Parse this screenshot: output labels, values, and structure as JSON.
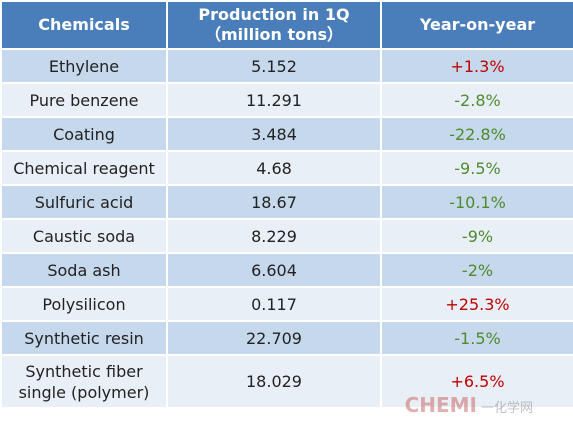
{
  "table": {
    "header": [
      "Chemicals",
      [
        "Production in 1Q",
        "（million tons）"
      ],
      "Year-on-year"
    ],
    "rows": [
      [
        "Ethylene",
        "5.152",
        "+1.3%"
      ],
      [
        "Pure benzene",
        "11.291",
        "-2.8%"
      ],
      [
        "Coating",
        "3.484",
        "-22.8%"
      ],
      [
        "Chemical reagent",
        "4.68",
        "-9.5%"
      ],
      [
        "Sulfuric acid",
        "18.67",
        "-10.1%"
      ],
      [
        "Caustic soda",
        "8.229",
        "-9%"
      ],
      [
        "Soda ash",
        "6.604",
        "-2%"
      ],
      [
        "Polysilicon",
        "0.117",
        "+25.3%"
      ],
      [
        "Synthetic resin",
        "22.709",
        "-1.5%"
      ],
      [
        "Synthetic fiber single (polymer)",
        "18.029",
        "+6.5%"
      ]
    ],
    "change_colors": [
      "#c00000",
      "#4f8a2e",
      "#4f8a2e",
      "#4f8a2e",
      "#4f8a2e",
      "#4f8a2e",
      "#4f8a2e",
      "#c00000",
      "#4f8a2e",
      "#c00000"
    ]
  },
  "watermark": [
    "CHEMI",
    "一化学网"
  ]
}
